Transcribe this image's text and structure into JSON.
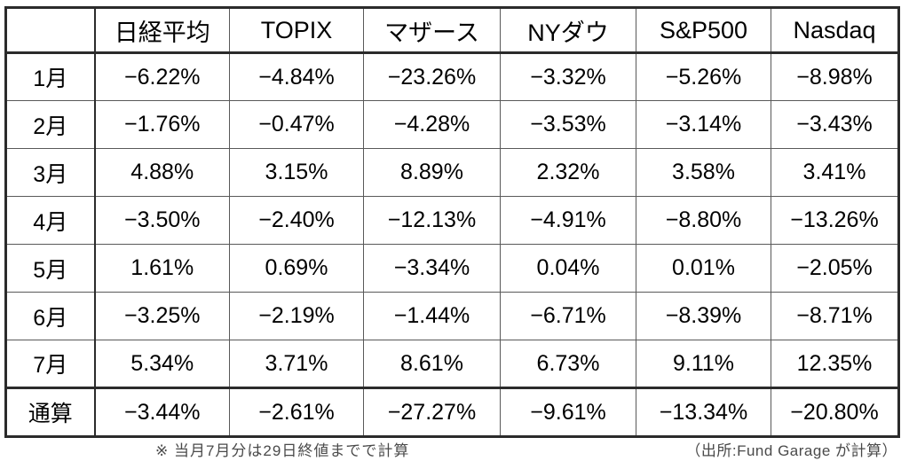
{
  "chart_data": {
    "type": "table",
    "title": "",
    "columns": [
      "日経平均",
      "TOPIX",
      "マザース",
      "NYダウ",
      "S&P500",
      "Nasdaq"
    ],
    "row_labels": [
      "1月",
      "2月",
      "3月",
      "4月",
      "5月",
      "6月",
      "7月",
      "通算"
    ],
    "values_pct": [
      [
        -6.22,
        -4.84,
        -23.26,
        -3.32,
        -5.26,
        -8.98
      ],
      [
        -1.76,
        -0.47,
        -4.28,
        -3.53,
        -3.14,
        -3.43
      ],
      [
        4.88,
        3.15,
        8.89,
        2.32,
        3.58,
        3.41
      ],
      [
        -3.5,
        -2.4,
        -12.13,
        -4.91,
        -8.8,
        -13.26
      ],
      [
        1.61,
        0.69,
        -3.34,
        0.04,
        0.01,
        -2.05
      ],
      [
        -3.25,
        -2.19,
        -1.44,
        -6.71,
        -8.39,
        -8.71
      ],
      [
        5.34,
        3.71,
        8.61,
        6.73,
        9.11,
        12.35
      ],
      [
        -3.44,
        -2.61,
        -27.27,
        -9.61,
        -13.34,
        -20.8
      ]
    ],
    "value_unit": "%",
    "corner_cell": "",
    "total_row_label": "通算",
    "grid": true,
    "legend_position": "none"
  },
  "footnotes": {
    "calculation_note": "※ 当月7月分は29日終値までで計算",
    "source": "（出所:Fund Garage が計算）"
  },
  "colors": {
    "background": "#ffffff",
    "text": "#000000",
    "border_heavy": "#2b2b2b",
    "border_light": "#595959",
    "footnote_text": "#4a4a4a"
  }
}
